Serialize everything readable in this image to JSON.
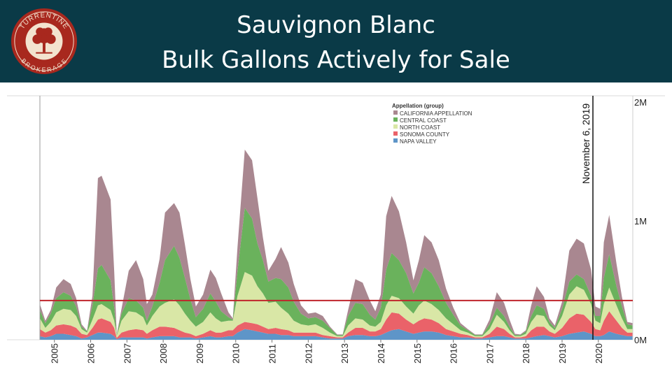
{
  "header": {
    "title_line1": "Sauvignon Blanc",
    "title_line2": "Bulk Gallons Actively for Sale",
    "logo_text_top": "TURRENTINE",
    "logo_text_bottom": "BROKERAGE"
  },
  "colors": {
    "header_bg": "#0a3a47",
    "california_appellation": "#a98790",
    "central_coast": "#6ab25c",
    "north_coast": "#d9e7a6",
    "sonoma_county": "#ea6269",
    "napa_valley": "#5e95c8",
    "reference_line": "#c0252b",
    "logo_red": "#a8281e"
  },
  "chart_data": {
    "type": "area",
    "stacked": true,
    "title": "",
    "xlabel": "",
    "ylabel": "",
    "x_domain": [
      2004.6,
      2020.95
    ],
    "ylim": [
      0,
      2000000
    ],
    "y_ticks": [
      {
        "value": 0,
        "label": "0M"
      },
      {
        "value": 1000000,
        "label": "1M"
      },
      {
        "value": 2000000,
        "label": "2M"
      }
    ],
    "x_ticks": [
      {
        "value": 2005,
        "label": "2005"
      },
      {
        "value": 2006,
        "label": "2006"
      },
      {
        "value": 2007,
        "label": "2007"
      },
      {
        "value": 2008,
        "label": "2008"
      },
      {
        "value": 2009,
        "label": "2009"
      },
      {
        "value": 2010,
        "label": "2010"
      },
      {
        "value": 2011,
        "label": "2011"
      },
      {
        "value": 2012,
        "label": "2012"
      },
      {
        "value": 2013,
        "label": "2013"
      },
      {
        "value": 2014,
        "label": "2014"
      },
      {
        "value": 2015,
        "label": "2015"
      },
      {
        "value": 2016,
        "label": "2016"
      },
      {
        "value": 2017,
        "label": "2017"
      },
      {
        "value": 2018,
        "label": "2018"
      },
      {
        "value": 2019,
        "label": "2019"
      },
      {
        "value": 2020,
        "label": "2020"
      }
    ],
    "legend_title": "Appellation (group)",
    "legend_position": "top-center",
    "x": [
      2004.6,
      2004.75,
      2004.9,
      2005.05,
      2005.25,
      2005.45,
      2005.6,
      2005.75,
      2005.9,
      2006.05,
      2006.2,
      2006.3,
      2006.55,
      2006.65,
      2006.72,
      2006.85,
      2007.05,
      2007.25,
      2007.45,
      2007.55,
      2007.7,
      2007.9,
      2008.05,
      2008.3,
      2008.45,
      2008.6,
      2008.75,
      2008.9,
      2009.1,
      2009.3,
      2009.45,
      2009.6,
      2009.8,
      2009.92,
      2010.05,
      2010.25,
      2010.45,
      2010.6,
      2010.75,
      2010.9,
      2011.1,
      2011.25,
      2011.45,
      2011.6,
      2011.8,
      2012.0,
      2012.2,
      2012.4,
      2012.6,
      2012.8,
      2012.95,
      2013.1,
      2013.3,
      2013.5,
      2013.7,
      2013.85,
      2014.0,
      2014.15,
      2014.3,
      2014.5,
      2014.7,
      2014.9,
      2015.05,
      2015.2,
      2015.4,
      2015.6,
      2015.8,
      2016.0,
      2016.2,
      2016.4,
      2016.6,
      2016.8,
      2017.0,
      2017.2,
      2017.4,
      2017.55,
      2017.7,
      2017.85,
      2018.0,
      2018.15,
      2018.3,
      2018.5,
      2018.65,
      2018.8,
      2019.0,
      2019.2,
      2019.4,
      2019.6,
      2019.8,
      2019.92,
      2020.05,
      2020.15,
      2020.3,
      2020.5,
      2020.65,
      2020.8,
      2020.95
    ],
    "series": [
      {
        "name": "NAPA VALLEY",
        "values": [
          30000,
          20000,
          30000,
          50000,
          50000,
          40000,
          30000,
          10000,
          20000,
          40000,
          60000,
          60000,
          50000,
          30000,
          5000,
          20000,
          20000,
          20000,
          20000,
          10000,
          20000,
          30000,
          30000,
          30000,
          20000,
          20000,
          20000,
          10000,
          20000,
          30000,
          20000,
          20000,
          30000,
          30000,
          60000,
          90000,
          80000,
          70000,
          60000,
          50000,
          50000,
          40000,
          40000,
          30000,
          30000,
          30000,
          30000,
          20000,
          10000,
          10000,
          10000,
          30000,
          40000,
          40000,
          30000,
          30000,
          40000,
          60000,
          80000,
          90000,
          70000,
          50000,
          60000,
          70000,
          70000,
          60000,
          40000,
          30000,
          20000,
          20000,
          10000,
          10000,
          20000,
          30000,
          30000,
          20000,
          10000,
          10000,
          10000,
          20000,
          30000,
          40000,
          30000,
          20000,
          30000,
          50000,
          60000,
          70000,
          50000,
          30000,
          30000,
          40000,
          70000,
          50000,
          40000,
          30000,
          30000
        ]
      },
      {
        "name": "SONOMA COUNTY",
        "values": [
          60000,
          40000,
          50000,
          70000,
          80000,
          80000,
          70000,
          40000,
          20000,
          60000,
          110000,
          120000,
          100000,
          70000,
          10000,
          40000,
          60000,
          70000,
          60000,
          40000,
          60000,
          80000,
          80000,
          70000,
          60000,
          40000,
          30000,
          20000,
          30000,
          50000,
          40000,
          40000,
          50000,
          50000,
          60000,
          60000,
          60000,
          60000,
          50000,
          40000,
          50000,
          50000,
          40000,
          30000,
          30000,
          30000,
          30000,
          20000,
          20000,
          10000,
          10000,
          30000,
          60000,
          60000,
          40000,
          40000,
          50000,
          110000,
          150000,
          130000,
          100000,
          80000,
          100000,
          110000,
          100000,
          80000,
          50000,
          40000,
          30000,
          20000,
          10000,
          10000,
          30000,
          80000,
          60000,
          30000,
          10000,
          10000,
          20000,
          60000,
          80000,
          70000,
          40000,
          30000,
          70000,
          130000,
          160000,
          140000,
          100000,
          60000,
          50000,
          120000,
          170000,
          110000,
          60000,
          30000,
          30000
        ]
      },
      {
        "name": "NORTH COAST",
        "values": [
          90000,
          40000,
          70000,
          110000,
          130000,
          130000,
          100000,
          40000,
          20000,
          70000,
          120000,
          120000,
          100000,
          60000,
          20000,
          100000,
          160000,
          140000,
          110000,
          70000,
          120000,
          170000,
          200000,
          240000,
          210000,
          160000,
          110000,
          80000,
          100000,
          150000,
          120000,
          90000,
          80000,
          80000,
          250000,
          420000,
          400000,
          320000,
          280000,
          220000,
          220000,
          180000,
          140000,
          100000,
          70000,
          60000,
          70000,
          60000,
          30000,
          10000,
          10000,
          60000,
          80000,
          70000,
          50000,
          40000,
          60000,
          120000,
          140000,
          130000,
          110000,
          90000,
          130000,
          150000,
          130000,
          110000,
          90000,
          60000,
          30000,
          20000,
          10000,
          10000,
          40000,
          100000,
          60000,
          30000,
          10000,
          10000,
          20000,
          70000,
          100000,
          90000,
          50000,
          30000,
          100000,
          200000,
          230000,
          210000,
          150000,
          70000,
          60000,
          140000,
          200000,
          130000,
          80000,
          30000,
          30000
        ]
      },
      {
        "name": "CENTRAL COAST",
        "values": [
          70000,
          40000,
          70000,
          120000,
          140000,
          120000,
          80000,
          20000,
          10000,
          120000,
          310000,
          330000,
          250000,
          110000,
          5000,
          60000,
          110000,
          100000,
          80000,
          40000,
          80000,
          200000,
          360000,
          450000,
          400000,
          300000,
          180000,
          80000,
          110000,
          160000,
          140000,
          90000,
          30000,
          10000,
          210000,
          540000,
          480000,
          360000,
          280000,
          180000,
          200000,
          240000,
          220000,
          160000,
          90000,
          60000,
          60000,
          60000,
          40000,
          10000,
          10000,
          80000,
          130000,
          130000,
          90000,
          60000,
          120000,
          300000,
          360000,
          320000,
          280000,
          170000,
          190000,
          280000,
          260000,
          200000,
          130000,
          80000,
          40000,
          20000,
          10000,
          10000,
          40000,
          60000,
          50000,
          30000,
          10000,
          10000,
          20000,
          50000,
          80000,
          60000,
          30000,
          20000,
          60000,
          110000,
          100000,
          90000,
          70000,
          40000,
          60000,
          220000,
          280000,
          160000,
          100000,
          40000,
          30000
        ]
      },
      {
        "name": "CALIFORNIA APPELLATION",
        "values": [
          50000,
          20000,
          30000,
          90000,
          110000,
          100000,
          70000,
          20000,
          5000,
          80000,
          760000,
          750000,
          680000,
          300000,
          5000,
          40000,
          230000,
          340000,
          240000,
          140000,
          100000,
          200000,
          400000,
          360000,
          380000,
          280000,
          170000,
          90000,
          120000,
          200000,
          200000,
          150000,
          40000,
          10000,
          200000,
          490000,
          490000,
          380000,
          190000,
          90000,
          160000,
          270000,
          210000,
          150000,
          70000,
          40000,
          40000,
          40000,
          10000,
          5000,
          5000,
          50000,
          200000,
          180000,
          120000,
          70000,
          110000,
          450000,
          480000,
          410000,
          260000,
          110000,
          190000,
          270000,
          260000,
          220000,
          120000,
          60000,
          20000,
          10000,
          5000,
          5000,
          40000,
          130000,
          110000,
          60000,
          10000,
          5000,
          10000,
          90000,
          160000,
          100000,
          30000,
          20000,
          60000,
          260000,
          300000,
          300000,
          220000,
          80000,
          60000,
          300000,
          330000,
          190000,
          80000,
          20000,
          20000
        ]
      }
    ],
    "reference_line": {
      "value": 330000,
      "color": "#c0252b"
    },
    "annotations": [
      {
        "label": "November 6, 2019",
        "x": 2019.85
      }
    ]
  }
}
